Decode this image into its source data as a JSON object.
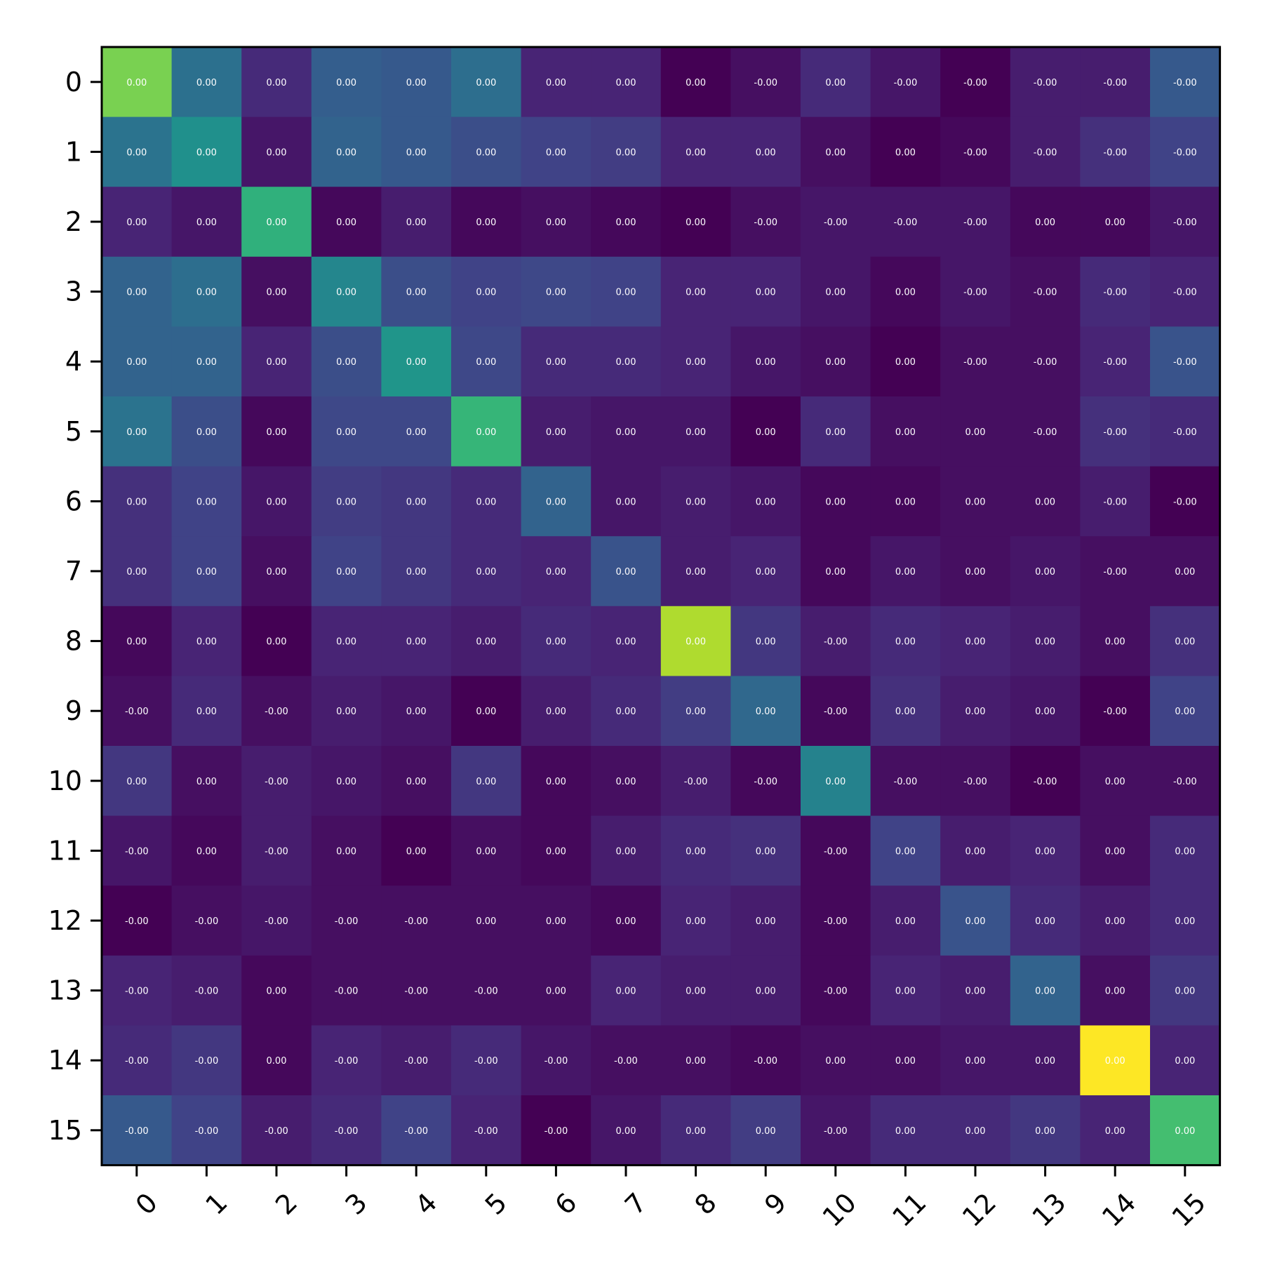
{
  "chart_data": {
    "type": "heatmap",
    "title": "",
    "xlabel": "",
    "ylabel": "",
    "x_categories": [
      "0",
      "1",
      "2",
      "3",
      "4",
      "5",
      "6",
      "7",
      "8",
      "9",
      "10",
      "11",
      "12",
      "13",
      "14",
      "15"
    ],
    "y_categories": [
      "0",
      "1",
      "2",
      "3",
      "4",
      "5",
      "6",
      "7",
      "8",
      "9",
      "10",
      "11",
      "12",
      "13",
      "14",
      "15"
    ],
    "colormap": "viridis",
    "grid": false,
    "colorbar": false,
    "intensity": [
      [
        0.8,
        0.37,
        0.12,
        0.3,
        0.28,
        0.36,
        0.1,
        0.1,
        0.0,
        0.04,
        0.12,
        0.06,
        0.0,
        0.08,
        0.08,
        0.28
      ],
      [
        0.38,
        0.5,
        0.06,
        0.32,
        0.28,
        0.24,
        0.2,
        0.18,
        0.1,
        0.1,
        0.04,
        0.0,
        0.02,
        0.08,
        0.14,
        0.2
      ],
      [
        0.1,
        0.06,
        0.64,
        0.02,
        0.08,
        0.02,
        0.04,
        0.02,
        0.0,
        0.04,
        0.06,
        0.06,
        0.06,
        0.02,
        0.02,
        0.06
      ],
      [
        0.32,
        0.36,
        0.04,
        0.46,
        0.24,
        0.2,
        0.22,
        0.2,
        0.1,
        0.1,
        0.06,
        0.02,
        0.06,
        0.04,
        0.12,
        0.1
      ],
      [
        0.32,
        0.32,
        0.1,
        0.24,
        0.52,
        0.22,
        0.12,
        0.12,
        0.1,
        0.06,
        0.04,
        0.0,
        0.04,
        0.04,
        0.1,
        0.26
      ],
      [
        0.38,
        0.24,
        0.02,
        0.22,
        0.22,
        0.66,
        0.08,
        0.06,
        0.06,
        0.0,
        0.12,
        0.04,
        0.04,
        0.04,
        0.14,
        0.12
      ],
      [
        0.14,
        0.2,
        0.06,
        0.18,
        0.16,
        0.12,
        0.32,
        0.06,
        0.08,
        0.06,
        0.02,
        0.02,
        0.04,
        0.04,
        0.08,
        0.0
      ],
      [
        0.14,
        0.2,
        0.04,
        0.2,
        0.16,
        0.12,
        0.1,
        0.26,
        0.08,
        0.1,
        0.02,
        0.06,
        0.04,
        0.06,
        0.04,
        0.04
      ],
      [
        0.02,
        0.1,
        0.0,
        0.1,
        0.1,
        0.08,
        0.12,
        0.1,
        0.88,
        0.16,
        0.08,
        0.12,
        0.1,
        0.08,
        0.04,
        0.14
      ],
      [
        0.04,
        0.12,
        0.04,
        0.08,
        0.06,
        0.0,
        0.08,
        0.12,
        0.18,
        0.34,
        0.02,
        0.14,
        0.08,
        0.06,
        0.0,
        0.2
      ],
      [
        0.16,
        0.04,
        0.08,
        0.06,
        0.04,
        0.16,
        0.02,
        0.04,
        0.08,
        0.02,
        0.44,
        0.04,
        0.04,
        0.0,
        0.04,
        0.04
      ],
      [
        0.06,
        0.02,
        0.08,
        0.04,
        0.0,
        0.04,
        0.02,
        0.08,
        0.12,
        0.14,
        0.02,
        0.2,
        0.08,
        0.1,
        0.04,
        0.12
      ],
      [
        0.0,
        0.04,
        0.06,
        0.04,
        0.04,
        0.04,
        0.04,
        0.02,
        0.1,
        0.08,
        0.02,
        0.08,
        0.26,
        0.12,
        0.08,
        0.12
      ],
      [
        0.1,
        0.08,
        0.02,
        0.04,
        0.04,
        0.04,
        0.04,
        0.1,
        0.08,
        0.08,
        0.02,
        0.1,
        0.08,
        0.32,
        0.04,
        0.16
      ],
      [
        0.12,
        0.16,
        0.02,
        0.1,
        0.08,
        0.12,
        0.06,
        0.04,
        0.04,
        0.02,
        0.04,
        0.04,
        0.06,
        0.06,
        1.0,
        0.1
      ],
      [
        0.28,
        0.2,
        0.08,
        0.12,
        0.2,
        0.1,
        0.0,
        0.06,
        0.12,
        0.18,
        0.06,
        0.12,
        0.12,
        0.16,
        0.1,
        0.7
      ]
    ],
    "cell_labels": [
      [
        "0.00",
        "0.00",
        "0.00",
        "0.00",
        "0.00",
        "0.00",
        "0.00",
        "0.00",
        "0.00",
        "-0.00",
        "0.00",
        "-0.00",
        "-0.00",
        "-0.00",
        "-0.00",
        "-0.00"
      ],
      [
        "0.00",
        "0.00",
        "0.00",
        "0.00",
        "0.00",
        "0.00",
        "0.00",
        "0.00",
        "0.00",
        "0.00",
        "0.00",
        "0.00",
        "-0.00",
        "-0.00",
        "-0.00",
        "-0.00"
      ],
      [
        "0.00",
        "0.00",
        "0.00",
        "0.00",
        "0.00",
        "0.00",
        "0.00",
        "0.00",
        "0.00",
        "-0.00",
        "-0.00",
        "-0.00",
        "-0.00",
        "0.00",
        "0.00",
        "-0.00"
      ],
      [
        "0.00",
        "0.00",
        "0.00",
        "0.00",
        "0.00",
        "0.00",
        "0.00",
        "0.00",
        "0.00",
        "0.00",
        "0.00",
        "0.00",
        "-0.00",
        "-0.00",
        "-0.00",
        "-0.00"
      ],
      [
        "0.00",
        "0.00",
        "0.00",
        "0.00",
        "0.00",
        "0.00",
        "0.00",
        "0.00",
        "0.00",
        "0.00",
        "0.00",
        "0.00",
        "-0.00",
        "-0.00",
        "-0.00",
        "-0.00"
      ],
      [
        "0.00",
        "0.00",
        "0.00",
        "0.00",
        "0.00",
        "0.00",
        "0.00",
        "0.00",
        "0.00",
        "0.00",
        "0.00",
        "0.00",
        "0.00",
        "-0.00",
        "-0.00",
        "-0.00"
      ],
      [
        "0.00",
        "0.00",
        "0.00",
        "0.00",
        "0.00",
        "0.00",
        "0.00",
        "0.00",
        "0.00",
        "0.00",
        "0.00",
        "0.00",
        "0.00",
        "0.00",
        "-0.00",
        "-0.00"
      ],
      [
        "0.00",
        "0.00",
        "0.00",
        "0.00",
        "0.00",
        "0.00",
        "0.00",
        "0.00",
        "0.00",
        "0.00",
        "0.00",
        "0.00",
        "0.00",
        "0.00",
        "-0.00",
        "0.00"
      ],
      [
        "0.00",
        "0.00",
        "0.00",
        "0.00",
        "0.00",
        "0.00",
        "0.00",
        "0.00",
        "0.00",
        "0.00",
        "-0.00",
        "0.00",
        "0.00",
        "0.00",
        "0.00",
        "0.00"
      ],
      [
        "-0.00",
        "0.00",
        "-0.00",
        "0.00",
        "0.00",
        "0.00",
        "0.00",
        "0.00",
        "0.00",
        "0.00",
        "-0.00",
        "0.00",
        "0.00",
        "0.00",
        "-0.00",
        "0.00"
      ],
      [
        "0.00",
        "0.00",
        "-0.00",
        "0.00",
        "0.00",
        "0.00",
        "0.00",
        "0.00",
        "-0.00",
        "-0.00",
        "0.00",
        "-0.00",
        "-0.00",
        "-0.00",
        "0.00",
        "-0.00"
      ],
      [
        "-0.00",
        "0.00",
        "-0.00",
        "0.00",
        "0.00",
        "0.00",
        "0.00",
        "0.00",
        "0.00",
        "0.00",
        "-0.00",
        "0.00",
        "0.00",
        "0.00",
        "0.00",
        "0.00"
      ],
      [
        "-0.00",
        "-0.00",
        "-0.00",
        "-0.00",
        "-0.00",
        "0.00",
        "0.00",
        "0.00",
        "0.00",
        "0.00",
        "-0.00",
        "0.00",
        "0.00",
        "0.00",
        "0.00",
        "0.00"
      ],
      [
        "-0.00",
        "-0.00",
        "0.00",
        "-0.00",
        "-0.00",
        "-0.00",
        "0.00",
        "0.00",
        "0.00",
        "0.00",
        "-0.00",
        "0.00",
        "0.00",
        "0.00",
        "0.00",
        "0.00"
      ],
      [
        "-0.00",
        "-0.00",
        "0.00",
        "-0.00",
        "-0.00",
        "-0.00",
        "-0.00",
        "-0.00",
        "0.00",
        "-0.00",
        "0.00",
        "0.00",
        "0.00",
        "0.00",
        "0.00",
        "0.00"
      ],
      [
        "-0.00",
        "-0.00",
        "-0.00",
        "-0.00",
        "-0.00",
        "-0.00",
        "-0.00",
        "0.00",
        "0.00",
        "0.00",
        "-0.00",
        "0.00",
        "0.00",
        "0.00",
        "0.00",
        "0.00"
      ]
    ]
  }
}
